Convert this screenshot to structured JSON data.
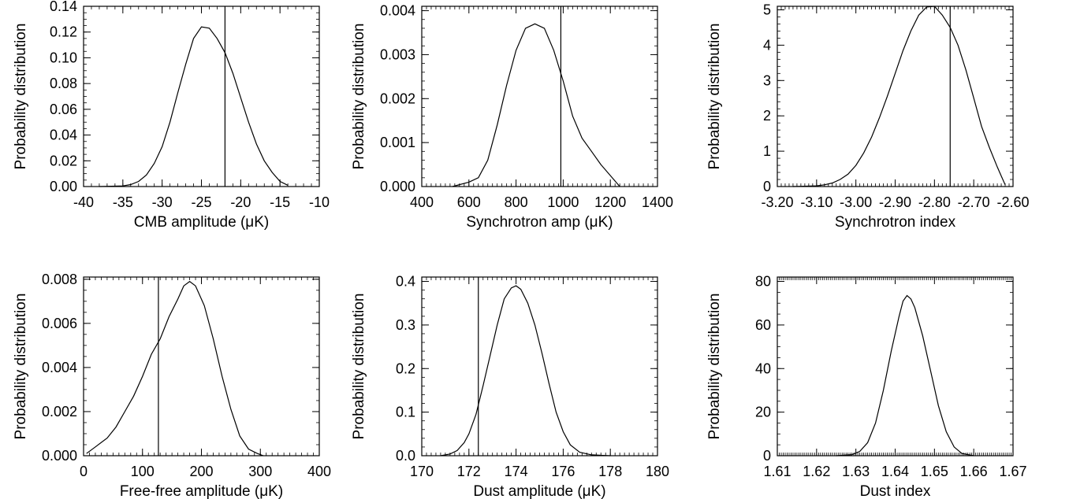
{
  "chart_data": [
    {
      "type": "line",
      "xlabel": "CMB amplitude (μK)",
      "ylabel": "Probability distribution",
      "xlim": [
        -40,
        -10
      ],
      "ylim": [
        0,
        0.14
      ],
      "xticks": [
        -40,
        -35,
        -30,
        -25,
        -20,
        -15,
        -10
      ],
      "xtick_labels": [
        "-40",
        "-35",
        "-30",
        "-25",
        "-20",
        "-15",
        "-10"
      ],
      "yticks": [
        0,
        0.02,
        0.04,
        0.06,
        0.08,
        0.1,
        0.12,
        0.14
      ],
      "ytick_labels": [
        "0.00",
        "0.02",
        "0.04",
        "0.06",
        "0.08",
        "0.10",
        "0.12",
        "0.14"
      ],
      "x_minor": 1,
      "y_minor": 0.005,
      "vline": -22,
      "x": [
        -38,
        -35,
        -34,
        -33,
        -32,
        -31,
        -30,
        -29,
        -28,
        -27,
        -26,
        -25,
        -24,
        -23,
        -22,
        -21,
        -20,
        -19,
        -18,
        -17,
        -16,
        -15,
        -14
      ],
      "y": [
        0.0,
        0.0005,
        0.0015,
        0.004,
        0.009,
        0.018,
        0.031,
        0.05,
        0.073,
        0.095,
        0.115,
        0.124,
        0.123,
        0.115,
        0.104,
        0.088,
        0.069,
        0.05,
        0.033,
        0.02,
        0.011,
        0.004,
        0.001
      ]
    },
    {
      "type": "line",
      "xlabel": "Synchrotron amp (μK)",
      "ylabel": "Probability distribution",
      "xlim": [
        400,
        1400
      ],
      "ylim": [
        0,
        0.0041
      ],
      "xticks": [
        400,
        600,
        800,
        1000,
        1200,
        1400
      ],
      "xtick_labels": [
        "400",
        "600",
        "800",
        "1000",
        "1200",
        "1400"
      ],
      "yticks": [
        0,
        0.001,
        0.002,
        0.003,
        0.004
      ],
      "ytick_labels": [
        "0.000",
        "0.001",
        "0.002",
        "0.003",
        "0.004"
      ],
      "x_minor": 20,
      "y_minor": 0.0002,
      "vline": 990,
      "x": [
        530,
        600,
        640,
        680,
        720,
        760,
        800,
        840,
        880,
        920,
        960,
        1000,
        1040,
        1080,
        1120,
        1160,
        1240
      ],
      "y": [
        0.0,
        0.0001,
        0.0002,
        0.0006,
        0.0014,
        0.0023,
        0.0031,
        0.0036,
        0.0037,
        0.0036,
        0.0031,
        0.0024,
        0.0016,
        0.0011,
        0.0008,
        0.0005,
        0.0
      ]
    },
    {
      "type": "line",
      "xlabel": "Synchrotron index",
      "ylabel": "Probability distribution",
      "xlim": [
        -3.2,
        -2.6
      ],
      "ylim": [
        0,
        5.1
      ],
      "xticks": [
        -3.2,
        -3.1,
        -3.0,
        -2.9,
        -2.8,
        -2.7,
        -2.6
      ],
      "xtick_labels": [
        "-3.20",
        "-3.10",
        "-3.00",
        "-2.90",
        "-2.80",
        "-2.70",
        "-2.60"
      ],
      "yticks": [
        0,
        1,
        2,
        3,
        4,
        5
      ],
      "ytick_labels": [
        "0",
        "1",
        "2",
        "3",
        "4",
        "5"
      ],
      "x_minor": 0.01,
      "y_minor": 0.2,
      "vline": -2.76,
      "x": [
        -3.16,
        -3.1,
        -3.08,
        -3.06,
        -3.04,
        -3.02,
        -3.0,
        -2.98,
        -2.96,
        -2.94,
        -2.92,
        -2.9,
        -2.88,
        -2.86,
        -2.84,
        -2.82,
        -2.8,
        -2.78,
        -2.76,
        -2.74,
        -2.72,
        -2.7,
        -2.68,
        -2.66,
        -2.64,
        -2.62
      ],
      "y": [
        0.0,
        0.02,
        0.05,
        0.1,
        0.2,
        0.35,
        0.6,
        0.95,
        1.4,
        1.95,
        2.55,
        3.2,
        3.85,
        4.4,
        4.85,
        5.08,
        5.1,
        4.85,
        4.5,
        4.0,
        3.3,
        2.5,
        1.7,
        1.1,
        0.55,
        0.05
      ]
    },
    {
      "type": "line",
      "xlabel": "Free-free amplitude (μK)",
      "ylabel": "Probability distribution",
      "xlim": [
        0,
        400
      ],
      "ylim": [
        0,
        0.0081
      ],
      "xticks": [
        0,
        100,
        200,
        300,
        400
      ],
      "xtick_labels": [
        "0",
        "100",
        "200",
        "300",
        "400"
      ],
      "yticks": [
        0,
        0.002,
        0.004,
        0.006,
        0.008
      ],
      "ytick_labels": [
        "0.000",
        "0.002",
        "0.004",
        "0.006",
        "0.008"
      ],
      "x_minor": 10,
      "y_minor": 0.0005,
      "vline": 127,
      "x": [
        5,
        20,
        40,
        55,
        70,
        85,
        100,
        115,
        130,
        145,
        160,
        170,
        180,
        190,
        205,
        220,
        235,
        250,
        265,
        280,
        295,
        305
      ],
      "y": [
        0.0001,
        0.0004,
        0.0008,
        0.0013,
        0.002,
        0.0027,
        0.0036,
        0.0046,
        0.0053,
        0.0063,
        0.0071,
        0.0077,
        0.0079,
        0.0077,
        0.0068,
        0.0053,
        0.0036,
        0.0021,
        0.0009,
        0.0003,
        0.0001,
        0.0
      ]
    },
    {
      "type": "line",
      "xlabel": "Dust amplitude (μK)",
      "ylabel": "Probability distribution",
      "xlim": [
        170,
        180
      ],
      "ylim": [
        0,
        0.41
      ],
      "xticks": [
        170,
        172,
        174,
        176,
        178,
        180
      ],
      "xtick_labels": [
        "170",
        "172",
        "174",
        "176",
        "178",
        "180"
      ],
      "yticks": [
        0,
        0.1,
        0.2,
        0.3,
        0.4
      ],
      "ytick_labels": [
        "0.0",
        "0.1",
        "0.2",
        "0.3",
        "0.4"
      ],
      "x_minor": 0.2,
      "y_minor": 0.02,
      "vline": 172.4,
      "x": [
        170.8,
        171.2,
        171.5,
        171.8,
        172.0,
        172.3,
        172.6,
        172.9,
        173.2,
        173.5,
        173.8,
        174.0,
        174.2,
        174.5,
        174.8,
        175.1,
        175.4,
        175.7,
        176.0,
        176.3,
        176.7,
        177.2,
        178.0
      ],
      "y": [
        0.0,
        0.004,
        0.012,
        0.03,
        0.05,
        0.095,
        0.16,
        0.23,
        0.3,
        0.36,
        0.385,
        0.39,
        0.382,
        0.35,
        0.3,
        0.235,
        0.165,
        0.1,
        0.055,
        0.025,
        0.008,
        0.002,
        0.0
      ]
    },
    {
      "type": "line",
      "xlabel": "Dust index",
      "ylabel": "Probability distribution",
      "xlim": [
        1.61,
        1.67
      ],
      "ylim": [
        0,
        82
      ],
      "xticks": [
        1.61,
        1.62,
        1.63,
        1.64,
        1.65,
        1.66,
        1.67
      ],
      "xtick_labels": [
        "1.61",
        "1.62",
        "1.63",
        "1.64",
        "1.65",
        "1.66",
        "1.67"
      ],
      "yticks": [
        0,
        20,
        40,
        60,
        80
      ],
      "ytick_labels": [
        "0",
        "20",
        "40",
        "60",
        "80"
      ],
      "x_minor": 0.0005,
      "y_minor": 5,
      "vline": null,
      "x": [
        1.625,
        1.629,
        1.631,
        1.633,
        1.635,
        1.637,
        1.639,
        1.641,
        1.642,
        1.643,
        1.644,
        1.645,
        1.647,
        1.649,
        1.651,
        1.653,
        1.655,
        1.657,
        1.66
      ],
      "y": [
        0.0,
        0.5,
        2,
        6,
        15,
        30,
        48,
        64,
        71,
        73.5,
        72,
        68,
        55,
        39,
        23,
        11,
        4,
        1,
        0.0
      ]
    }
  ]
}
